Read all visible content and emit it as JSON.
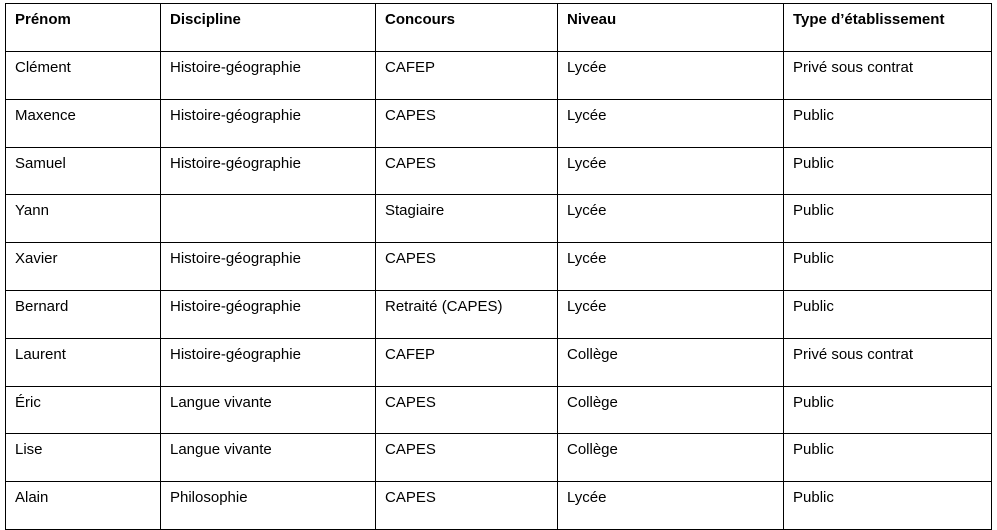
{
  "table": {
    "headers": [
      "Prénom",
      "Discipline",
      "Concours",
      "Niveau",
      "Type d’établissement"
    ],
    "rows": [
      [
        "Clément",
        "Histoire-géographie",
        "CAFEP",
        "Lycée",
        "Privé sous contrat"
      ],
      [
        "Maxence",
        "Histoire-géographie",
        "CAPES",
        "Lycée",
        "Public"
      ],
      [
        "Samuel",
        "Histoire-géographie",
        "CAPES",
        "Lycée",
        "Public"
      ],
      [
        "Yann",
        "",
        "Stagiaire",
        "Lycée",
        "Public"
      ],
      [
        "Xavier",
        "Histoire-géographie",
        "CAPES",
        "Lycée",
        "Public"
      ],
      [
        "Bernard",
        "Histoire-géographie",
        "Retraité (CAPES)",
        "Lycée",
        "Public"
      ],
      [
        "Laurent",
        "Histoire-géographie",
        "CAFEP",
        "Collège",
        "Privé sous contrat"
      ],
      [
        "Éric",
        "Langue vivante",
        "CAPES",
        "Collège",
        "Public"
      ],
      [
        "Lise",
        "Langue vivante",
        "CAPES",
        "Collège",
        "Public"
      ],
      [
        "Alain",
        "Philosophie",
        "CAPES",
        "Lycée",
        "Public"
      ]
    ]
  }
}
